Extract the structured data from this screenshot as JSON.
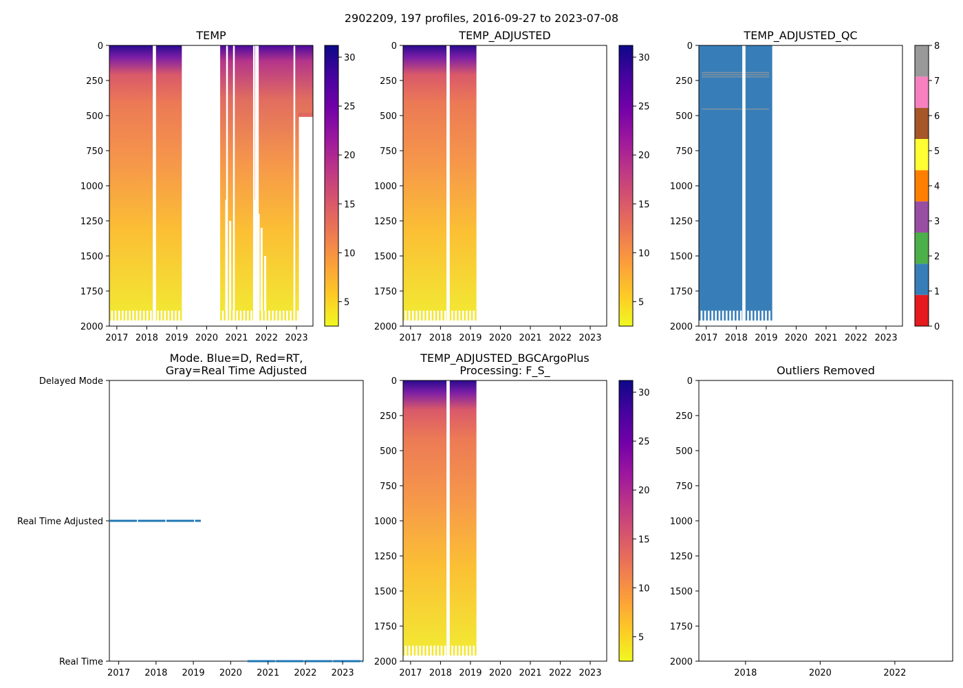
{
  "suptitle": "2902209, 197 profiles, 2016-09-27 to 2023-07-08",
  "colors": {
    "plasma": [
      "#0d0887",
      "#46039f",
      "#7201a8",
      "#9c179e",
      "#bd3786",
      "#d8576b",
      "#ed7953",
      "#fb9f3a",
      "#fdca26",
      "#f0f921"
    ],
    "qc": [
      "#e41a1c",
      "#377eb8",
      "#4daf4a",
      "#984ea3",
      "#ff7f00",
      "#ffff33",
      "#a65628",
      "#f781bf",
      "#999999"
    ],
    "mode_line": "#1f77b4"
  },
  "chart_data": [
    {
      "id": "temp",
      "type": "heatmap",
      "title": "TEMP",
      "ylim": [
        2000,
        0
      ],
      "yticks": [
        0,
        250,
        500,
        750,
        1000,
        1250,
        1500,
        1750,
        2000
      ],
      "xlim": [
        2016.75,
        2023.55
      ],
      "xticks": [
        2017,
        2018,
        2019,
        2020,
        2021,
        2022,
        2023
      ],
      "data_segments": [
        [
          2016.75,
          2019.17
        ],
        [
          2020.45,
          2023.55
        ]
      ],
      "gaps": [
        2018.2,
        2018.25,
        2020.65,
        2020.88,
        2021.55,
        2021.62,
        2021.68,
        2022.9
      ],
      "colorbar": {
        "min": 2.5,
        "max": 31.2,
        "ticks": [
          5,
          10,
          15,
          20,
          25,
          30
        ]
      }
    },
    {
      "id": "temp_adj",
      "type": "heatmap",
      "title": "TEMP_ADJUSTED",
      "ylim": [
        2000,
        0
      ],
      "yticks": [
        0,
        250,
        500,
        750,
        1000,
        1250,
        1500,
        1750,
        2000
      ],
      "xlim": [
        2016.75,
        2023.55
      ],
      "xticks": [
        2017,
        2018,
        2019,
        2020,
        2021,
        2022,
        2023
      ],
      "data_segments": [
        [
          2016.75,
          2019.2
        ]
      ],
      "gaps": [
        2018.2,
        2018.25
      ],
      "colorbar": {
        "min": 2.5,
        "max": 31.2,
        "ticks": [
          5,
          10,
          15,
          20,
          25,
          30
        ]
      }
    },
    {
      "id": "temp_qc",
      "type": "heatmap",
      "title": "TEMP_ADJUSTED_QC",
      "ylim": [
        2000,
        0
      ],
      "yticks": [
        0,
        250,
        500,
        750,
        1000,
        1250,
        1500,
        1750,
        2000
      ],
      "xlim": [
        2016.75,
        2023.55
      ],
      "xticks": [
        2017,
        2018,
        2019,
        2020,
        2021,
        2022,
        2023
      ],
      "data_segments": [
        [
          2016.75,
          2019.2
        ]
      ],
      "gaps": [
        2018.2,
        2018.25
      ],
      "qc_value": 1,
      "colorbar": {
        "min": 0,
        "max": 8,
        "ticks": [
          0,
          1,
          2,
          3,
          4,
          5,
          6,
          7,
          8
        ]
      }
    },
    {
      "id": "mode",
      "type": "line",
      "title": [
        "Mode. Blue=D, Red=RT,",
        "Gray=Real Time Adjusted"
      ],
      "xlim": [
        2016.75,
        2023.55
      ],
      "xticks": [
        2017,
        2018,
        2019,
        2020,
        2021,
        2022,
        2023
      ],
      "ycategories": [
        "Real Time",
        "Real Time Adjusted",
        "Delayed Mode"
      ],
      "series": [
        {
          "level": 1,
          "x": [
            2016.75,
            2019.2
          ]
        },
        {
          "level": 0,
          "x": [
            2020.45,
            2023.55
          ]
        }
      ]
    },
    {
      "id": "bgc",
      "type": "heatmap",
      "title": [
        "TEMP_ADJUSTED_BGCArgoPlus",
        "Processing: F_S_"
      ],
      "ylim": [
        2000,
        0
      ],
      "yticks": [
        0,
        250,
        500,
        750,
        1000,
        1250,
        1500,
        1750,
        2000
      ],
      "xlim": [
        2016.75,
        2023.55
      ],
      "xticks": [
        2017,
        2018,
        2019,
        2020,
        2021,
        2022,
        2023
      ],
      "data_segments": [
        [
          2016.75,
          2019.2
        ]
      ],
      "gaps": [
        2018.2,
        2018.25
      ],
      "colorbar": {
        "min": 2.5,
        "max": 31.2,
        "ticks": [
          5,
          10,
          15,
          20,
          25,
          30
        ]
      }
    },
    {
      "id": "outliers",
      "type": "scatter",
      "title": "Outliers Removed",
      "ylim": [
        2000,
        0
      ],
      "yticks": [
        0,
        250,
        500,
        750,
        1000,
        1250,
        1500,
        1750,
        2000
      ],
      "xlim": [
        2016.75,
        2023.55
      ],
      "xticks": [
        2018,
        2020,
        2022
      ],
      "points": []
    }
  ]
}
